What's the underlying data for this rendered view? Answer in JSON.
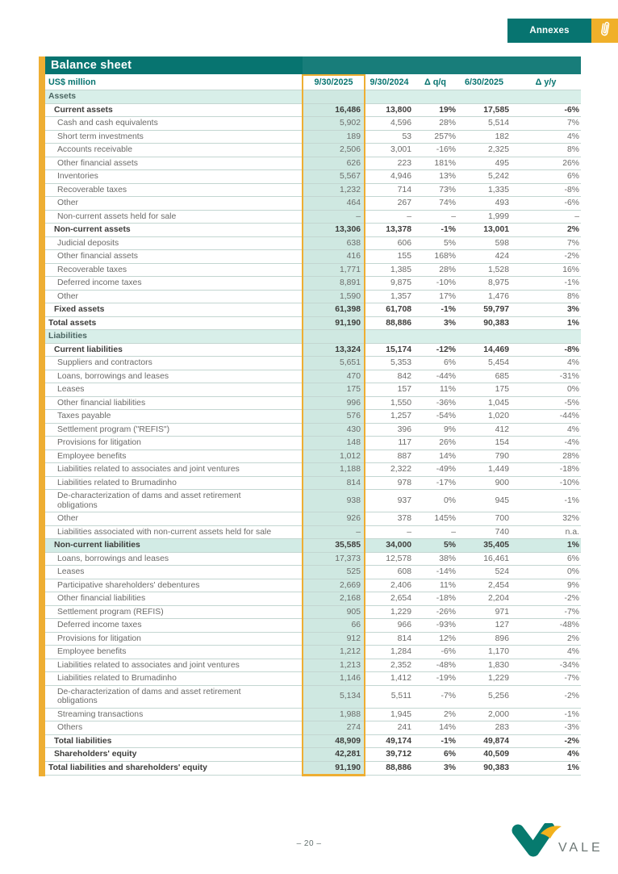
{
  "header": {
    "annexes_button_label": "Annexes",
    "paperclip_icon": "paperclip"
  },
  "title": "Balance sheet",
  "colors": {
    "teal": "#077470",
    "gold_accent": "#eeae33",
    "paperclip_gold": "#f0b02a",
    "mint_section_bg": "#d8efe9",
    "mint_column_bg": "#cfe8e1"
  },
  "table": {
    "unit_label": "US$ million",
    "highlighted_column": "9/30/2025",
    "columns": [
      "9/30/2025",
      "9/30/2024",
      "Δ q/q",
      "6/30/2025",
      "Δ y/y"
    ],
    "rows": [
      {
        "label": "Assets",
        "type": "section",
        "indent": 0,
        "values": [
          "",
          "",
          "",
          "",
          ""
        ]
      },
      {
        "label": "Current assets",
        "type": "group",
        "indent": 1,
        "values": [
          "16,486",
          "13,800",
          "19%",
          "17,585",
          "-6%"
        ]
      },
      {
        "label": "Cash and cash equivalents",
        "type": "item",
        "indent": 2,
        "values": [
          "5,902",
          "4,596",
          "28%",
          "5,514",
          "7%"
        ]
      },
      {
        "label": "Short term investments",
        "type": "item",
        "indent": 2,
        "values": [
          "189",
          "53",
          "257%",
          "182",
          "4%"
        ]
      },
      {
        "label": "Accounts receivable",
        "type": "item",
        "indent": 2,
        "values": [
          "2,506",
          "3,001",
          "-16%",
          "2,325",
          "8%"
        ]
      },
      {
        "label": "Other financial assets",
        "type": "item",
        "indent": 2,
        "values": [
          "626",
          "223",
          "181%",
          "495",
          "26%"
        ]
      },
      {
        "label": "Inventories",
        "type": "item",
        "indent": 2,
        "values": [
          "5,567",
          "4,946",
          "13%",
          "5,242",
          "6%"
        ]
      },
      {
        "label": "Recoverable taxes",
        "type": "item",
        "indent": 2,
        "values": [
          "1,232",
          "714",
          "73%",
          "1,335",
          "-8%"
        ]
      },
      {
        "label": "Other",
        "type": "item",
        "indent": 2,
        "values": [
          "464",
          "267",
          "74%",
          "493",
          "-6%"
        ]
      },
      {
        "label": "Non-current assets held for sale",
        "type": "item",
        "indent": 2,
        "values": [
          "–",
          "–",
          "–",
          "1,999",
          "–"
        ]
      },
      {
        "label": "Non-current assets",
        "type": "group",
        "indent": 1,
        "values": [
          "13,306",
          "13,378",
          "-1%",
          "13,001",
          "2%"
        ]
      },
      {
        "label": "Judicial deposits",
        "type": "item",
        "indent": 2,
        "values": [
          "638",
          "606",
          "5%",
          "598",
          "7%"
        ]
      },
      {
        "label": "Other financial assets",
        "type": "item",
        "indent": 2,
        "values": [
          "416",
          "155",
          "168%",
          "424",
          "-2%"
        ]
      },
      {
        "label": "Recoverable taxes",
        "type": "item",
        "indent": 2,
        "values": [
          "1,771",
          "1,385",
          "28%",
          "1,528",
          "16%"
        ]
      },
      {
        "label": "Deferred income taxes",
        "type": "item",
        "indent": 2,
        "values": [
          "8,891",
          "9,875",
          "-10%",
          "8,975",
          "-1%"
        ]
      },
      {
        "label": "Other",
        "type": "item",
        "indent": 2,
        "values": [
          "1,590",
          "1,357",
          "17%",
          "1,476",
          "8%"
        ]
      },
      {
        "label": "Fixed assets",
        "type": "group",
        "indent": 1,
        "values": [
          "61,398",
          "61,708",
          "-1%",
          "59,797",
          "3%"
        ]
      },
      {
        "label": "Total assets",
        "type": "total",
        "indent": 0,
        "values": [
          "91,190",
          "88,886",
          "3%",
          "90,383",
          "1%"
        ]
      },
      {
        "label": "Liabilities",
        "type": "section",
        "indent": 0,
        "values": [
          "",
          "",
          "",
          "",
          ""
        ]
      },
      {
        "label": "Current liabilities",
        "type": "group",
        "indent": 1,
        "values": [
          "13,324",
          "15,174",
          "-12%",
          "14,469",
          "-8%"
        ]
      },
      {
        "label": "Suppliers and contractors",
        "type": "item",
        "indent": 2,
        "values": [
          "5,651",
          "5,353",
          "6%",
          "5,454",
          "4%"
        ]
      },
      {
        "label": "Loans, borrowings and leases",
        "type": "item",
        "indent": 2,
        "values": [
          "470",
          "842",
          "-44%",
          "685",
          "-31%"
        ]
      },
      {
        "label": "Leases",
        "type": "item",
        "indent": 2,
        "values": [
          "175",
          "157",
          "11%",
          "175",
          "0%"
        ]
      },
      {
        "label": "Other financial liabilities",
        "type": "item",
        "indent": 2,
        "values": [
          "996",
          "1,550",
          "-36%",
          "1,045",
          "-5%"
        ]
      },
      {
        "label": "Taxes payable",
        "type": "item",
        "indent": 2,
        "values": [
          "576",
          "1,257",
          "-54%",
          "1,020",
          "-44%"
        ]
      },
      {
        "label": "Settlement program (\"REFIS\")",
        "type": "item",
        "indent": 2,
        "values": [
          "430",
          "396",
          "9%",
          "412",
          "4%"
        ]
      },
      {
        "label": "Provisions for litigation",
        "type": "item",
        "indent": 2,
        "values": [
          "148",
          "117",
          "26%",
          "154",
          "-4%"
        ]
      },
      {
        "label": "Employee benefits",
        "type": "item",
        "indent": 2,
        "values": [
          "1,012",
          "887",
          "14%",
          "790",
          "28%"
        ]
      },
      {
        "label": "Liabilities related to associates and joint ventures",
        "type": "item",
        "indent": 2,
        "values": [
          "1,188",
          "2,322",
          "-49%",
          "1,449",
          "-18%"
        ]
      },
      {
        "label": "Liabilities related to Brumadinho",
        "type": "item",
        "indent": 2,
        "values": [
          "814",
          "978",
          "-17%",
          "900",
          "-10%"
        ]
      },
      {
        "label": "De-characterization of dams and asset retirement\nobligations",
        "type": "item",
        "indent": 2,
        "values": [
          "938",
          "937",
          "0%",
          "945",
          "-1%"
        ]
      },
      {
        "label": "Other",
        "type": "item",
        "indent": 2,
        "values": [
          "926",
          "378",
          "145%",
          "700",
          "32%"
        ]
      },
      {
        "label": "Liabilities associated with non-current assets held for sale",
        "type": "item",
        "indent": 2,
        "values": [
          "–",
          "–",
          "–",
          "740",
          "n.a."
        ]
      },
      {
        "label": "Non-current liabilities",
        "type": "group",
        "indent": 1,
        "highlight": true,
        "values": [
          "35,585",
          "34,000",
          "5%",
          "35,405",
          "1%"
        ]
      },
      {
        "label": "Loans, borrowings and leases",
        "type": "item",
        "indent": 2,
        "values": [
          "17,373",
          "12,578",
          "38%",
          "16,461",
          "6%"
        ]
      },
      {
        "label": "Leases",
        "type": "item",
        "indent": 2,
        "values": [
          "525",
          "608",
          "-14%",
          "524",
          "0%"
        ]
      },
      {
        "label": "Participative shareholders' debentures",
        "type": "item",
        "indent": 2,
        "values": [
          "2,669",
          "2,406",
          "11%",
          "2,454",
          "9%"
        ]
      },
      {
        "label": "Other financial liabilities",
        "type": "item",
        "indent": 2,
        "values": [
          "2,168",
          "2,654",
          "-18%",
          "2,204",
          "-2%"
        ]
      },
      {
        "label": "Settlement program (REFIS)",
        "type": "item",
        "indent": 2,
        "values": [
          "905",
          "1,229",
          "-26%",
          "971",
          "-7%"
        ]
      },
      {
        "label": "Deferred income taxes",
        "type": "item",
        "indent": 2,
        "values": [
          "66",
          "966",
          "-93%",
          "127",
          "-48%"
        ]
      },
      {
        "label": "Provisions for litigation",
        "type": "item",
        "indent": 2,
        "values": [
          "912",
          "814",
          "12%",
          "896",
          "2%"
        ]
      },
      {
        "label": "Employee benefits",
        "type": "item",
        "indent": 2,
        "values": [
          "1,212",
          "1,284",
          "-6%",
          "1,170",
          "4%"
        ]
      },
      {
        "label": "Liabilities related to associates and joint ventures",
        "type": "item",
        "indent": 2,
        "values": [
          "1,213",
          "2,352",
          "-48%",
          "1,830",
          "-34%"
        ]
      },
      {
        "label": "Liabilities related to Brumadinho",
        "type": "item",
        "indent": 2,
        "values": [
          "1,146",
          "1,412",
          "-19%",
          "1,229",
          "-7%"
        ]
      },
      {
        "label": "De-characterization of dams and asset retirement\nobligations",
        "type": "item",
        "indent": 2,
        "values": [
          "5,134",
          "5,511",
          "-7%",
          "5,256",
          "-2%"
        ]
      },
      {
        "label": "Streaming transactions",
        "type": "item",
        "indent": 2,
        "values": [
          "1,988",
          "1,945",
          "2%",
          "2,000",
          "-1%"
        ]
      },
      {
        "label": "Others",
        "type": "item",
        "indent": 2,
        "values": [
          "274",
          "241",
          "14%",
          "283",
          "-3%"
        ]
      },
      {
        "label": "Total liabilities",
        "type": "group",
        "indent": 1,
        "values": [
          "48,909",
          "49,174",
          "-1%",
          "49,874",
          "-2%"
        ]
      },
      {
        "label": "Shareholders' equity",
        "type": "group",
        "indent": 1,
        "values": [
          "42,281",
          "39,712",
          "6%",
          "40,509",
          "4%"
        ]
      },
      {
        "label": "Total liabilities and shareholders' equity",
        "type": "total",
        "indent": 0,
        "values": [
          "91,190",
          "88,886",
          "3%",
          "90,383",
          "1%"
        ]
      }
    ]
  },
  "footer": {
    "page_number": "– 20 –",
    "logo_text": "VALE"
  }
}
